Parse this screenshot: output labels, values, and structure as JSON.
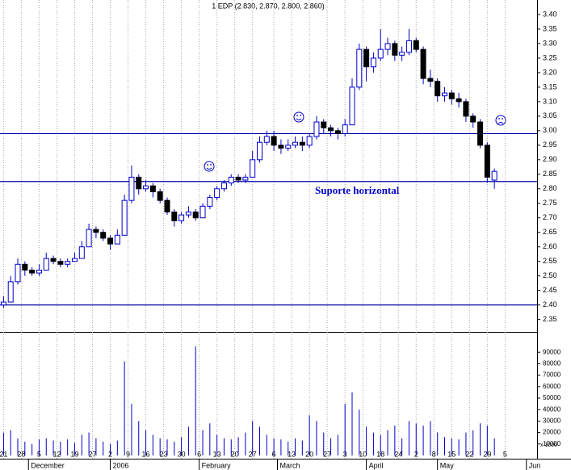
{
  "chart_data": {
    "type": "candlestick",
    "title": "1 EDP (2.830, 2.870, 2.800, 2.860)",
    "annotation": "Suporte horizontal",
    "volume_unit_label": "x 1000",
    "x": [
      0,
      2,
      4,
      6,
      8,
      10,
      12,
      14,
      16,
      18,
      20,
      22,
      24,
      26,
      28,
      30,
      32,
      34,
      36,
      38,
      40,
      42,
      44,
      46,
      48,
      50,
      52,
      54,
      56,
      58,
      60,
      62,
      64,
      66,
      68,
      70,
      72,
      74,
      76,
      78,
      80,
      82,
      84,
      86,
      88,
      90,
      92,
      94,
      96,
      98,
      100,
      102,
      104,
      106,
      108,
      110,
      112,
      114,
      116,
      118,
      120,
      122,
      124,
      126,
      128,
      130,
      132,
      134,
      136,
      138
    ],
    "open": [
      2.4,
      2.41,
      2.48,
      2.54,
      2.52,
      2.51,
      2.52,
      2.56,
      2.55,
      2.54,
      2.55,
      2.56,
      2.6,
      2.66,
      2.65,
      2.63,
      2.61,
      2.64,
      2.76,
      2.84,
      2.8,
      2.81,
      2.79,
      2.76,
      2.72,
      2.69,
      2.71,
      2.72,
      2.7,
      2.74,
      2.77,
      2.8,
      2.82,
      2.84,
      2.83,
      2.84,
      2.9,
      2.96,
      2.98,
      2.95,
      2.94,
      2.95,
      2.96,
      2.95,
      2.98,
      3.03,
      3.01,
      3.0,
      2.99,
      3.02,
      3.15,
      3.28,
      3.22,
      3.25,
      3.28,
      3.3,
      3.26,
      3.27,
      3.31,
      3.28,
      3.18,
      3.17,
      3.12,
      3.13,
      3.11,
      3.1,
      3.05,
      3.03,
      2.95,
      2.83
    ],
    "high": [
      2.43,
      2.5,
      2.56,
      2.55,
      2.53,
      2.54,
      2.58,
      2.57,
      2.56,
      2.56,
      2.58,
      2.62,
      2.68,
      2.67,
      2.66,
      2.64,
      2.66,
      2.78,
      2.88,
      2.85,
      2.83,
      2.82,
      2.8,
      2.77,
      2.73,
      2.72,
      2.74,
      2.73,
      2.75,
      2.78,
      2.81,
      2.83,
      2.85,
      2.85,
      2.85,
      2.93,
      2.98,
      3.0,
      3.0,
      2.97,
      2.97,
      2.98,
      2.98,
      2.99,
      3.05,
      3.04,
      3.02,
      3.01,
      3.04,
      3.18,
      3.3,
      3.29,
      3.27,
      3.35,
      3.32,
      3.31,
      3.29,
      3.35,
      3.32,
      3.29,
      3.21,
      3.18,
      3.15,
      3.14,
      3.13,
      3.11,
      3.06,
      3.04,
      2.96,
      2.87
    ],
    "low": [
      2.39,
      2.41,
      2.47,
      2.5,
      2.5,
      2.5,
      2.52,
      2.54,
      2.53,
      2.53,
      2.55,
      2.56,
      2.6,
      2.63,
      2.62,
      2.59,
      2.61,
      2.64,
      2.75,
      2.78,
      2.79,
      2.77,
      2.75,
      2.71,
      2.67,
      2.68,
      2.7,
      2.69,
      2.7,
      2.73,
      2.76,
      2.79,
      2.81,
      2.82,
      2.82,
      2.84,
      2.89,
      2.95,
      2.93,
      2.92,
      2.93,
      2.94,
      2.93,
      2.94,
      2.97,
      2.99,
      2.98,
      2.97,
      2.98,
      3.02,
      3.14,
      3.17,
      3.2,
      3.24,
      3.26,
      3.24,
      3.24,
      3.26,
      3.27,
      3.16,
      3.15,
      3.1,
      3.1,
      3.09,
      3.08,
      3.03,
      3.01,
      2.94,
      2.82,
      2.8
    ],
    "close": [
      2.41,
      2.48,
      2.54,
      2.52,
      2.51,
      2.52,
      2.56,
      2.55,
      2.54,
      2.55,
      2.56,
      2.6,
      2.66,
      2.65,
      2.63,
      2.61,
      2.64,
      2.76,
      2.84,
      2.8,
      2.81,
      2.79,
      2.76,
      2.72,
      2.69,
      2.71,
      2.72,
      2.7,
      2.74,
      2.77,
      2.8,
      2.82,
      2.84,
      2.83,
      2.84,
      2.9,
      2.96,
      2.98,
      2.95,
      2.94,
      2.95,
      2.96,
      2.95,
      2.98,
      3.03,
      3.01,
      3.0,
      2.99,
      3.02,
      3.15,
      3.28,
      3.22,
      3.25,
      3.28,
      3.3,
      3.26,
      3.27,
      3.31,
      3.28,
      3.18,
      3.17,
      3.12,
      3.13,
      3.11,
      3.1,
      3.05,
      3.03,
      2.95,
      2.84,
      2.86
    ],
    "volume": [
      20000,
      22000,
      15000,
      12000,
      10000,
      14000,
      15000,
      13000,
      12000,
      14000,
      11000,
      18000,
      20000,
      15000,
      12000,
      10000,
      13000,
      82000,
      45000,
      30000,
      22000,
      18000,
      15000,
      14000,
      12000,
      16000,
      25000,
      95000,
      22000,
      28000,
      18000,
      15000,
      14000,
      16000,
      20000,
      30000,
      25000,
      18000,
      15000,
      14000,
      12000,
      15000,
      13000,
      35000,
      30000,
      20000,
      15000,
      18000,
      45000,
      55000,
      40000,
      25000,
      20000,
      18000,
      22000,
      26000,
      15000,
      30000,
      28000,
      26000,
      30000,
      20000,
      16000,
      15000,
      14000,
      20000,
      22000,
      28000,
      26000,
      15000
    ],
    "up_color": "#ffffff",
    "down_color": "#000000",
    "outline_color": "#0000cc",
    "volume_color": "#0000cc",
    "line_color": "#0000aa",
    "support_lines": [
      2.99,
      2.825,
      2.4
    ],
    "grid": true,
    "xlim": [
      -1,
      150
    ],
    "xticks": [
      {
        "value": 0,
        "label": "21"
      },
      {
        "value": 5,
        "label": "28"
      },
      {
        "value": 10,
        "label": "5"
      },
      {
        "value": 15,
        "label": "12"
      },
      {
        "value": 20,
        "label": "19"
      },
      {
        "value": 25,
        "label": "27"
      },
      {
        "value": 30,
        "label": "2"
      },
      {
        "value": 35,
        "label": "9"
      },
      {
        "value": 40,
        "label": "16"
      },
      {
        "value": 45,
        "label": "23"
      },
      {
        "value": 50,
        "label": "30"
      },
      {
        "value": 55,
        "label": "6"
      },
      {
        "value": 60,
        "label": "13"
      },
      {
        "value": 65,
        "label": "20"
      },
      {
        "value": 70,
        "label": "27"
      },
      {
        "value": 76,
        "label": "6"
      },
      {
        "value": 81,
        "label": "13"
      },
      {
        "value": 86,
        "label": "20"
      },
      {
        "value": 91,
        "label": "27"
      },
      {
        "value": 96,
        "label": "3"
      },
      {
        "value": 101,
        "label": "10"
      },
      {
        "value": 106,
        "label": "18"
      },
      {
        "value": 111,
        "label": "24"
      },
      {
        "value": 116,
        "label": "2"
      },
      {
        "value": 121,
        "label": "8"
      },
      {
        "value": 126,
        "label": "15"
      },
      {
        "value": 131,
        "label": "22"
      },
      {
        "value": 136,
        "label": "29"
      },
      {
        "value": 141,
        "label": "5"
      }
    ],
    "month_ticks": [
      {
        "value": 7,
        "label": "December"
      },
      {
        "value": 30,
        "label": "2006"
      },
      {
        "value": 55,
        "label": "February"
      },
      {
        "value": 77,
        "label": "March"
      },
      {
        "value": 102,
        "label": "April"
      },
      {
        "value": 122,
        "label": "May"
      },
      {
        "value": 147,
        "label": "Jun"
      }
    ],
    "ylim": [
      2.31,
      3.45
    ],
    "yticks": [
      {
        "value": 2.35,
        "label": "2.35"
      },
      {
        "value": 2.4,
        "label": "2.40"
      },
      {
        "value": 2.45,
        "label": "2.45"
      },
      {
        "value": 2.5,
        "label": "2.50"
      },
      {
        "value": 2.55,
        "label": "2.55"
      },
      {
        "value": 2.6,
        "label": "2.60"
      },
      {
        "value": 2.65,
        "label": "2.65"
      },
      {
        "value": 2.7,
        "label": "2.70"
      },
      {
        "value": 2.75,
        "label": "2.75"
      },
      {
        "value": 2.8,
        "label": "2.80"
      },
      {
        "value": 2.85,
        "label": "2.85"
      },
      {
        "value": 2.9,
        "label": "2.90"
      },
      {
        "value": 2.95,
        "label": "2.95"
      },
      {
        "value": 3.0,
        "label": "3.00"
      },
      {
        "value": 3.05,
        "label": "3.05"
      },
      {
        "value": 3.1,
        "label": "3.10"
      },
      {
        "value": 3.15,
        "label": "3.15"
      },
      {
        "value": 3.2,
        "label": "3.20"
      },
      {
        "value": 3.25,
        "label": "3.25"
      },
      {
        "value": 3.3,
        "label": "3.30"
      },
      {
        "value": 3.35,
        "label": "3.35"
      },
      {
        "value": 3.4,
        "label": "3.40"
      }
    ],
    "y2lim": [
      0,
      100000
    ],
    "y2ticks": [
      10000,
      20000,
      30000,
      40000,
      50000,
      60000,
      70000,
      80000,
      90000
    ]
  }
}
